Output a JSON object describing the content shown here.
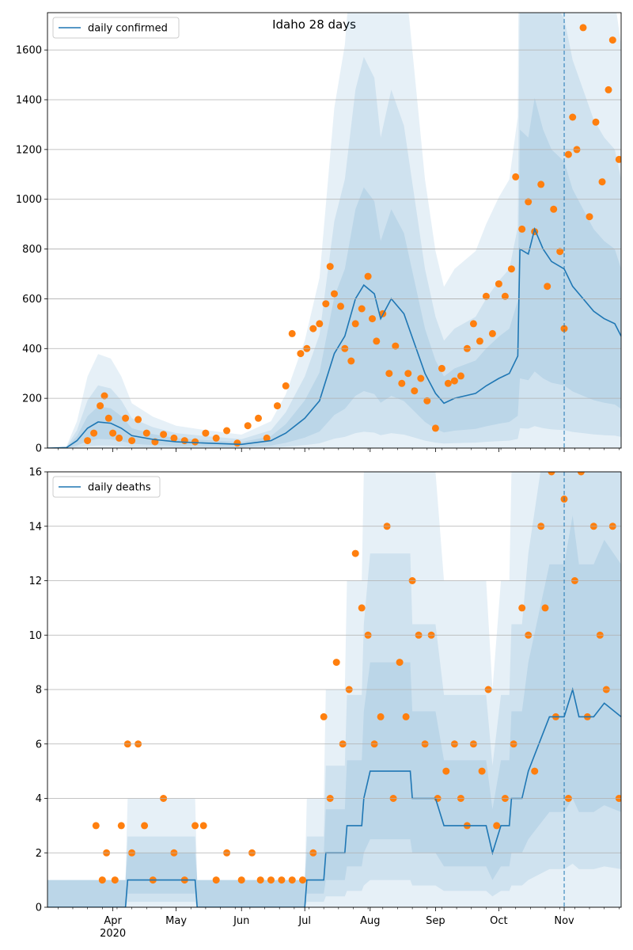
{
  "figure": {
    "title": "Idaho 28 days"
  },
  "colors": {
    "line": "#1f77b4",
    "dots": "#ff7f0e",
    "band": "#1f77b4",
    "grid": "#b0b0b0",
    "vline": "#1f77b4"
  },
  "chart_data": [
    {
      "type": "line",
      "title": "Idaho 28 days",
      "legend": "daily confirmed",
      "legend_position": "upper-left",
      "grid": "y",
      "ylim": [
        0,
        1750
      ],
      "yticks": [
        0,
        200,
        400,
        600,
        800,
        1000,
        1200,
        1400,
        1600
      ],
      "x_range": [
        "2020-03-01",
        "2020-11-28"
      ],
      "vline_date": "2020-11-01",
      "series": [
        {
          "name": "daily confirmed",
          "kind": "line",
          "points": [
            [
              "2020-03-01",
              0
            ],
            [
              "2020-03-10",
              2
            ],
            [
              "2020-03-15",
              30
            ],
            [
              "2020-03-20",
              80
            ],
            [
              "2020-03-25",
              105
            ],
            [
              "2020-03-31",
              100
            ],
            [
              "2020-04-05",
              80
            ],
            [
              "2020-04-10",
              50
            ],
            [
              "2020-04-20",
              35
            ],
            [
              "2020-05-01",
              25
            ],
            [
              "2020-05-15",
              20
            ],
            [
              "2020-06-01",
              15
            ],
            [
              "2020-06-15",
              30
            ],
            [
              "2020-06-22",
              60
            ],
            [
              "2020-07-01",
              120
            ],
            [
              "2020-07-08",
              190
            ],
            [
              "2020-07-15",
              380
            ],
            [
              "2020-07-20",
              450
            ],
            [
              "2020-07-25",
              600
            ],
            [
              "2020-07-29",
              655
            ],
            [
              "2020-08-03",
              620
            ],
            [
              "2020-08-06",
              520
            ],
            [
              "2020-08-11",
              600
            ],
            [
              "2020-08-17",
              540
            ],
            [
              "2020-08-22",
              420
            ],
            [
              "2020-08-27",
              300
            ],
            [
              "2020-09-01",
              220
            ],
            [
              "2020-09-05",
              180
            ],
            [
              "2020-09-10",
              200
            ],
            [
              "2020-09-15",
              210
            ],
            [
              "2020-09-20",
              220
            ],
            [
              "2020-09-25",
              250
            ],
            [
              "2020-10-01",
              280
            ],
            [
              "2020-10-06",
              300
            ],
            [
              "2020-10-10",
              370
            ],
            [
              "2020-10-11",
              800
            ],
            [
              "2020-10-15",
              780
            ],
            [
              "2020-10-18",
              880
            ],
            [
              "2020-10-22",
              800
            ],
            [
              "2020-10-26",
              750
            ],
            [
              "2020-11-01",
              720
            ],
            [
              "2020-11-05",
              650
            ],
            [
              "2020-11-10",
              600
            ],
            [
              "2020-11-15",
              550
            ],
            [
              "2020-11-20",
              520
            ],
            [
              "2020-11-25",
              500
            ],
            [
              "2020-11-28",
              450
            ]
          ]
        },
        {
          "name": "",
          "kind": "scatter",
          "points": [
            [
              "2020-03-20",
              30
            ],
            [
              "2020-03-23",
              60
            ],
            [
              "2020-03-26",
              170
            ],
            [
              "2020-03-28",
              210
            ],
            [
              "2020-03-30",
              120
            ],
            [
              "2020-04-01",
              60
            ],
            [
              "2020-04-04",
              40
            ],
            [
              "2020-04-07",
              120
            ],
            [
              "2020-04-10",
              30
            ],
            [
              "2020-04-13",
              115
            ],
            [
              "2020-04-17",
              60
            ],
            [
              "2020-04-21",
              25
            ],
            [
              "2020-04-25",
              55
            ],
            [
              "2020-04-30",
              40
            ],
            [
              "2020-05-05",
              30
            ],
            [
              "2020-05-10",
              25
            ],
            [
              "2020-05-15",
              60
            ],
            [
              "2020-05-20",
              40
            ],
            [
              "2020-05-25",
              70
            ],
            [
              "2020-05-30",
              20
            ],
            [
              "2020-06-04",
              90
            ],
            [
              "2020-06-09",
              120
            ],
            [
              "2020-06-13",
              40
            ],
            [
              "2020-06-18",
              170
            ],
            [
              "2020-06-22",
              250
            ],
            [
              "2020-06-25",
              460
            ],
            [
              "2020-06-29",
              380
            ],
            [
              "2020-07-02",
              400
            ],
            [
              "2020-07-05",
              480
            ],
            [
              "2020-07-08",
              500
            ],
            [
              "2020-07-11",
              580
            ],
            [
              "2020-07-13",
              730
            ],
            [
              "2020-07-15",
              620
            ],
            [
              "2020-07-18",
              570
            ],
            [
              "2020-07-20",
              400
            ],
            [
              "2020-07-23",
              350
            ],
            [
              "2020-07-25",
              500
            ],
            [
              "2020-07-28",
              560
            ],
            [
              "2020-07-31",
              690
            ],
            [
              "2020-08-02",
              520
            ],
            [
              "2020-08-04",
              430
            ],
            [
              "2020-08-07",
              540
            ],
            [
              "2020-08-10",
              300
            ],
            [
              "2020-08-13",
              410
            ],
            [
              "2020-08-16",
              260
            ],
            [
              "2020-08-19",
              300
            ],
            [
              "2020-08-22",
              230
            ],
            [
              "2020-08-25",
              280
            ],
            [
              "2020-08-28",
              190
            ],
            [
              "2020-09-01",
              80
            ],
            [
              "2020-09-04",
              320
            ],
            [
              "2020-09-07",
              260
            ],
            [
              "2020-09-10",
              270
            ],
            [
              "2020-09-13",
              290
            ],
            [
              "2020-09-16",
              400
            ],
            [
              "2020-09-19",
              500
            ],
            [
              "2020-09-22",
              430
            ],
            [
              "2020-09-25",
              610
            ],
            [
              "2020-09-28",
              460
            ],
            [
              "2020-10-01",
              660
            ],
            [
              "2020-10-04",
              610
            ],
            [
              "2020-10-07",
              720
            ],
            [
              "2020-10-09",
              1090
            ],
            [
              "2020-10-12",
              880
            ],
            [
              "2020-10-15",
              990
            ],
            [
              "2020-10-18",
              870
            ],
            [
              "2020-10-21",
              1060
            ],
            [
              "2020-10-24",
              650
            ],
            [
              "2020-10-27",
              960
            ],
            [
              "2020-10-30",
              790
            ],
            [
              "2020-11-01",
              480
            ],
            [
              "2020-11-03",
              1180
            ],
            [
              "2020-11-05",
              1330
            ],
            [
              "2020-11-07",
              1200
            ],
            [
              "2020-11-10",
              1690
            ],
            [
              "2020-11-13",
              930
            ],
            [
              "2020-11-16",
              1310
            ],
            [
              "2020-11-19",
              1070
            ],
            [
              "2020-11-22",
              1440
            ],
            [
              "2020-11-24",
              1640
            ],
            [
              "2020-11-27",
              1160
            ]
          ]
        }
      ]
    },
    {
      "type": "line",
      "legend": "daily deaths",
      "legend_position": "upper-left",
      "grid": "y",
      "ylim": [
        0,
        16
      ],
      "yticks": [
        0,
        2,
        4,
        6,
        8,
        10,
        12,
        14,
        16
      ],
      "x_range": [
        "2020-03-01",
        "2020-11-28"
      ],
      "xticks": [
        {
          "date": "2020-04-01",
          "label": "Apr",
          "sub": "2020"
        },
        {
          "date": "2020-05-01",
          "label": "May"
        },
        {
          "date": "2020-06-01",
          "label": "Jun"
        },
        {
          "date": "2020-07-01",
          "label": "Jul"
        },
        {
          "date": "2020-08-01",
          "label": "Aug"
        },
        {
          "date": "2020-09-01",
          "label": "Sep"
        },
        {
          "date": "2020-10-01",
          "label": "Oct"
        },
        {
          "date": "2020-11-01",
          "label": "Nov"
        }
      ],
      "vline_date": "2020-11-01",
      "series": [
        {
          "name": "daily deaths",
          "kind": "line",
          "points": [
            [
              "2020-03-01",
              0
            ],
            [
              "2020-04-07",
              0
            ],
            [
              "2020-04-08",
              1
            ],
            [
              "2020-05-10",
              1
            ],
            [
              "2020-05-11",
              0
            ],
            [
              "2020-07-01",
              0
            ],
            [
              "2020-07-02",
              1
            ],
            [
              "2020-07-10",
              1
            ],
            [
              "2020-07-11",
              2
            ],
            [
              "2020-07-20",
              2
            ],
            [
              "2020-07-21",
              3
            ],
            [
              "2020-07-28",
              3
            ],
            [
              "2020-07-29",
              4
            ],
            [
              "2020-08-01",
              5
            ],
            [
              "2020-08-20",
              5
            ],
            [
              "2020-08-21",
              4
            ],
            [
              "2020-09-01",
              4
            ],
            [
              "2020-09-05",
              3
            ],
            [
              "2020-09-25",
              3
            ],
            [
              "2020-09-28",
              2
            ],
            [
              "2020-10-02",
              3
            ],
            [
              "2020-10-06",
              3
            ],
            [
              "2020-10-07",
              4
            ],
            [
              "2020-10-12",
              4
            ],
            [
              "2020-10-15",
              5
            ],
            [
              "2020-10-20",
              6
            ],
            [
              "2020-10-25",
              7
            ],
            [
              "2020-11-01",
              7
            ],
            [
              "2020-11-05",
              8
            ],
            [
              "2020-11-08",
              7
            ],
            [
              "2020-11-12",
              7
            ],
            [
              "2020-11-15",
              7
            ],
            [
              "2020-11-20",
              7.5
            ],
            [
              "2020-11-28",
              7
            ]
          ]
        },
        {
          "name": "",
          "kind": "scatter",
          "points": [
            [
              "2020-03-24",
              3
            ],
            [
              "2020-03-27",
              1
            ],
            [
              "2020-03-29",
              2
            ],
            [
              "2020-04-02",
              1
            ],
            [
              "2020-04-05",
              3
            ],
            [
              "2020-04-08",
              6
            ],
            [
              "2020-04-10",
              2
            ],
            [
              "2020-04-13",
              6
            ],
            [
              "2020-04-16",
              3
            ],
            [
              "2020-04-20",
              1
            ],
            [
              "2020-04-25",
              4
            ],
            [
              "2020-04-30",
              2
            ],
            [
              "2020-05-05",
              1
            ],
            [
              "2020-05-10",
              3
            ],
            [
              "2020-05-14",
              3
            ],
            [
              "2020-05-20",
              1
            ],
            [
              "2020-05-25",
              2
            ],
            [
              "2020-06-01",
              1
            ],
            [
              "2020-06-06",
              2
            ],
            [
              "2020-06-10",
              1
            ],
            [
              "2020-06-15",
              1
            ],
            [
              "2020-06-20",
              1
            ],
            [
              "2020-06-25",
              1
            ],
            [
              "2020-06-30",
              1
            ],
            [
              "2020-07-05",
              2
            ],
            [
              "2020-07-10",
              7
            ],
            [
              "2020-07-13",
              4
            ],
            [
              "2020-07-16",
              9
            ],
            [
              "2020-07-19",
              6
            ],
            [
              "2020-07-22",
              8
            ],
            [
              "2020-07-25",
              13
            ],
            [
              "2020-07-28",
              11
            ],
            [
              "2020-07-31",
              10
            ],
            [
              "2020-08-03",
              6
            ],
            [
              "2020-08-06",
              7
            ],
            [
              "2020-08-09",
              14
            ],
            [
              "2020-08-12",
              4
            ],
            [
              "2020-08-15",
              9
            ],
            [
              "2020-08-18",
              7
            ],
            [
              "2020-08-21",
              12
            ],
            [
              "2020-08-24",
              10
            ],
            [
              "2020-08-27",
              6
            ],
            [
              "2020-08-30",
              10
            ],
            [
              "2020-09-02",
              4
            ],
            [
              "2020-09-06",
              5
            ],
            [
              "2020-09-10",
              6
            ],
            [
              "2020-09-13",
              4
            ],
            [
              "2020-09-16",
              3
            ],
            [
              "2020-09-19",
              6
            ],
            [
              "2020-09-23",
              5
            ],
            [
              "2020-09-26",
              8
            ],
            [
              "2020-09-30",
              3
            ],
            [
              "2020-10-04",
              4
            ],
            [
              "2020-10-08",
              6
            ],
            [
              "2020-10-12",
              11
            ],
            [
              "2020-10-15",
              10
            ],
            [
              "2020-10-18",
              5
            ],
            [
              "2020-10-21",
              14
            ],
            [
              "2020-10-23",
              11
            ],
            [
              "2020-10-26",
              16
            ],
            [
              "2020-10-28",
              7
            ],
            [
              "2020-11-01",
              15
            ],
            [
              "2020-11-03",
              4
            ],
            [
              "2020-11-06",
              12
            ],
            [
              "2020-11-09",
              16
            ],
            [
              "2020-11-12",
              7
            ],
            [
              "2020-11-15",
              14
            ],
            [
              "2020-11-18",
              10
            ],
            [
              "2020-11-21",
              8
            ],
            [
              "2020-11-24",
              14
            ],
            [
              "2020-11-27",
              4
            ]
          ]
        }
      ]
    }
  ]
}
